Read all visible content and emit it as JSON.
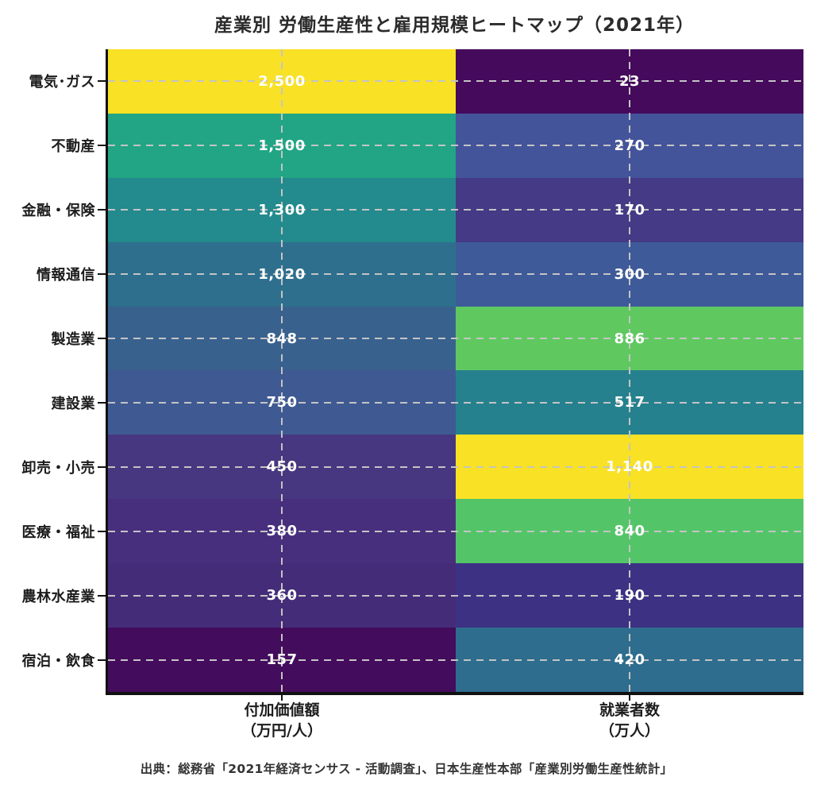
{
  "title": "産業別 労働生産性と雇用規模ヒートマップ（2021年）",
  "source_note": "出典：総務省「2021年経済センサス - 活動調査」、日本生産性本部「産業別労働生産性統計」",
  "colors": {
    "background": "#ffffff",
    "title_text": "#2b2b2b",
    "axis_label_text": "#1c1c1c",
    "value_text": "#ffffff",
    "spine": "#111111",
    "grid_dash": "#c4c4c4"
  },
  "chart_data": {
    "type": "heatmap",
    "title": "産業別 労働生産性と雇用規模ヒートマップ（2021年）",
    "colormap": "viridis",
    "normalization": "per-column",
    "grid": "dashed crosshair at each row/column center",
    "columns": [
      {
        "label": "付加価値額",
        "unit": "（万円/人）"
      },
      {
        "label": "就業者数",
        "unit": "（万人）"
      }
    ],
    "rows": [
      {
        "label": "電気･ガス",
        "values": [
          2500,
          23
        ],
        "display": [
          "2,500",
          "23"
        ],
        "cell_colors": [
          "#f9e125",
          "#450a5c"
        ]
      },
      {
        "label": "不動産",
        "values": [
          1500,
          270
        ],
        "display": [
          "1,500",
          "270"
        ],
        "cell_colors": [
          "#21a585",
          "#44549b"
        ]
      },
      {
        "label": "金融・保険",
        "values": [
          1300,
          170
        ],
        "display": [
          "1,300",
          "170"
        ],
        "cell_colors": [
          "#238a8d",
          "#443a85"
        ]
      },
      {
        "label": "情報通信",
        "values": [
          1020,
          300
        ],
        "display": [
          "1,020",
          "300"
        ],
        "cell_colors": [
          "#2e6f8e",
          "#3e5a99"
        ]
      },
      {
        "label": "製造業",
        "values": [
          848,
          886
        ],
        "display": [
          "848",
          "886"
        ],
        "cell_colors": [
          "#39618e",
          "#5fc960"
        ]
      },
      {
        "label": "建設業",
        "values": [
          750,
          517
        ],
        "display": [
          "750",
          "517"
        ],
        "cell_colors": [
          "#3f5a92",
          "#26818e"
        ]
      },
      {
        "label": "卸売・小売",
        "values": [
          450,
          1140
        ],
        "display": [
          "450",
          "1,140"
        ],
        "cell_colors": [
          "#473780",
          "#f9e125"
        ]
      },
      {
        "label": "医療・福祉",
        "values": [
          380,
          840
        ],
        "display": [
          "380",
          "840"
        ],
        "cell_colors": [
          "#472f7d",
          "#53c568"
        ]
      },
      {
        "label": "農林水産業",
        "values": [
          360,
          190
        ],
        "display": [
          "360",
          "190"
        ],
        "cell_colors": [
          "#452c79",
          "#3d3184"
        ]
      },
      {
        "label": "宿泊・飲食",
        "values": [
          157,
          420
        ],
        "display": [
          "157",
          "420"
        ],
        "cell_colors": [
          "#440c5c",
          "#2e6d8e"
        ]
      }
    ]
  }
}
